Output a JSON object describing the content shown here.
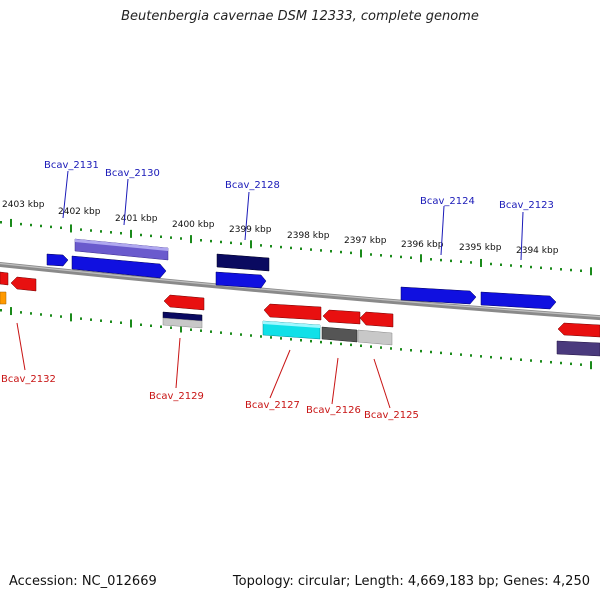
{
  "title": "Beutenbergia cavernae DSM 12333, complete genome",
  "accession": "Accession: NC_012669",
  "topology": "Topology: circular; Length: 4,669,183 bp; Genes: 4,250",
  "colors": {
    "backbone": "#8a8a8a",
    "ticks": "#1a8a1a",
    "forward_label": "#1a1ab8",
    "reverse_label": "#c81414",
    "blue_gene": "#1010e0",
    "navy_gene": "#0a0a60",
    "lavender_gene": "#6a5acd",
    "red_gene": "#e81010",
    "cyan_gene": "#10e0e8",
    "gray_gene": "#555555",
    "lightgray_gene": "#c8c8c8",
    "orange_gene": "#ff9900"
  },
  "kbp_labels": [
    "2403 kbp",
    "2402 kbp",
    "2401 kbp",
    "2400 kbp",
    "2399 kbp",
    "2398 kbp",
    "2397 kbp",
    "2396 kbp",
    "2395 kbp",
    "2394 kbp"
  ],
  "forward_gene_labels": [
    "Bcav_2131",
    "Bcav_2130",
    "Bcav_2128",
    "Bcav_2124",
    "Bcav_2123"
  ],
  "reverse_gene_labels": [
    "Bcav_2132",
    "Bcav_2129",
    "Bcav_2127",
    "Bcav_2126",
    "Bcav_2125"
  ]
}
